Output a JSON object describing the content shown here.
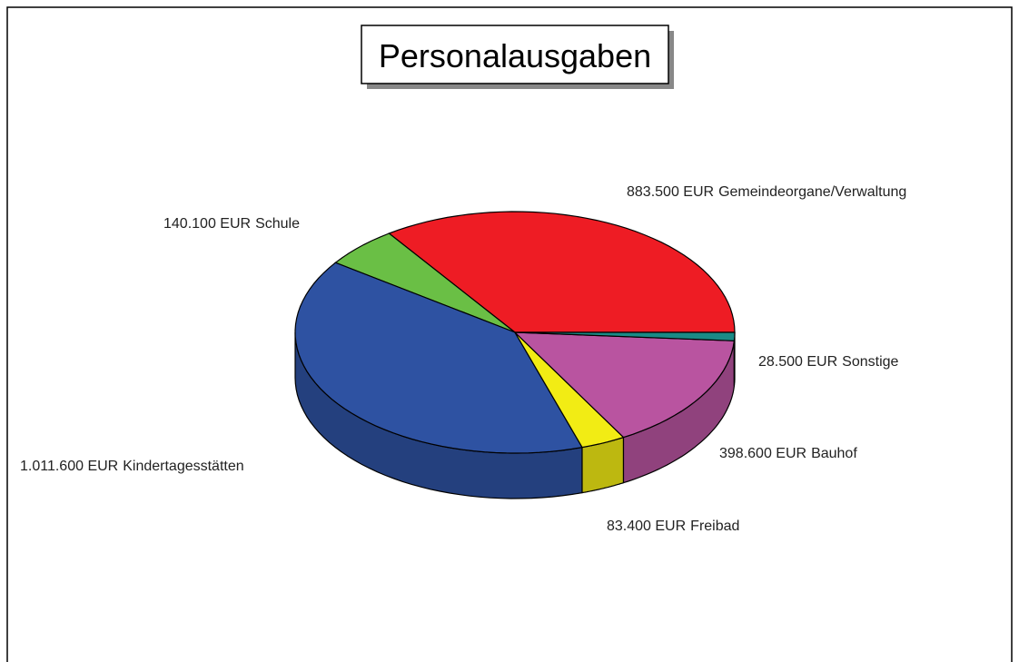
{
  "chart_data": {
    "type": "pie3d",
    "title": "Personalausgaben",
    "categories": [
      "Gemeindeorgane/Verwaltung",
      "Schule",
      "Kindertagesstätten",
      "Freibad",
      "Bauhof",
      "Sonstige"
    ],
    "values": [
      883500,
      140100,
      1011600,
      83400,
      398600,
      28500
    ],
    "value_labels": [
      "883.500 EUR",
      "140.100 EUR",
      "1.011.600 EUR",
      "83.400 EUR",
      "398.600 EUR",
      "28.500 EUR"
    ],
    "colors": [
      "#ee1c24",
      "#6abf45",
      "#2e52a2",
      "#f2ec14",
      "#b954a0",
      "#1a8a86"
    ]
  }
}
